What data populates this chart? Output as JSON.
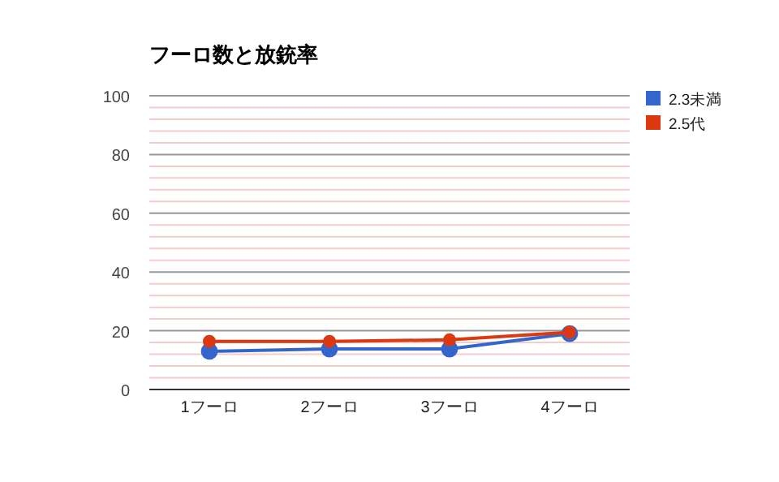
{
  "chart_data": {
    "type": "line",
    "title": "フーロ数と放銃率",
    "categories": [
      "1フーロ",
      "2フーロ",
      "3フーロ",
      "4フーロ"
    ],
    "series": [
      {
        "name": "2.3未満",
        "color": "#3366cc",
        "values": [
          13,
          13.8,
          13.8,
          19
        ]
      },
      {
        "name": "2.5代",
        "color": "#dc3912",
        "values": [
          16.4,
          16.4,
          16.9,
          19.5
        ]
      }
    ],
    "ylim": [
      0,
      100
    ],
    "yticks": [
      0,
      20,
      40,
      60,
      80,
      100
    ],
    "grid": true,
    "legend": "right",
    "marker": "circle"
  }
}
